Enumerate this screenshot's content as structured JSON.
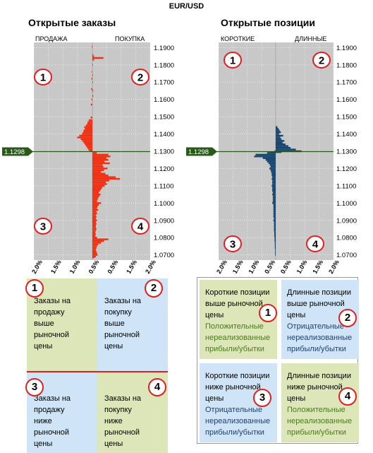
{
  "title": "EUR/USD",
  "current_price": "1.1298",
  "left_panel": {
    "title": "Открытые заказы",
    "left_label": "ПРОДАЖА",
    "right_label": "ПОКУПКА"
  },
  "right_panel": {
    "title": "Открытые позиции",
    "left_label": "КОРОТКИЕ",
    "right_label": "ДЛИННЫЕ"
  },
  "colors": {
    "plot_bg": "#c8c8c8",
    "orders_bar": "#f03010",
    "positions_bar": "#17466e",
    "price_line": "#2a5a1a",
    "marker": "#e02020",
    "quad_green": "#dde6b8",
    "quad_blue": "#cfe4f6"
  },
  "chart_data": [
    {
      "type": "bar",
      "orientation": "horizontal-diverging",
      "title": "Открытые заказы",
      "ylim": [
        1.067,
        1.193
      ],
      "y_ticks": [
        "1.1900",
        "1.1800",
        "1.1700",
        "1.1600",
        "1.1500",
        "1.1400",
        "1.1300",
        "1.1200",
        "1.1100",
        "1.1000",
        "1.0900",
        "1.0800",
        "1.0700"
      ],
      "x_ticks": [
        "2.0%",
        "1.5%",
        "1.0%",
        "0.5%",
        "0.5%",
        "1.5%",
        "2.0%"
      ],
      "xlim_percent": [
        -2.0,
        2.0
      ],
      "series": [
        {
          "name": "ПРОДАЖА",
          "values": [
            [
              1.1905,
              0.02
            ],
            [
              1.176,
              0.02
            ],
            [
              1.172,
              0.03
            ],
            [
              1.166,
              0.04
            ],
            [
              1.16,
              0.03
            ],
            [
              1.157,
              0.05
            ],
            [
              1.1495,
              0.06
            ],
            [
              1.148,
              0.12
            ],
            [
              1.147,
              0.16
            ],
            [
              1.146,
              0.18
            ],
            [
              1.145,
              0.22
            ],
            [
              1.144,
              0.28
            ],
            [
              1.143,
              0.26
            ],
            [
              1.142,
              0.3
            ],
            [
              1.141,
              0.32
            ],
            [
              1.14,
              0.36
            ],
            [
              1.139,
              0.45
            ],
            [
              1.138,
              0.52
            ],
            [
              1.137,
              0.4
            ],
            [
              1.136,
              0.35
            ],
            [
              1.135,
              0.3
            ],
            [
              1.134,
              0.26
            ],
            [
              1.133,
              0.22
            ],
            [
              1.132,
              0.18
            ],
            [
              1.131,
              0.14
            ],
            [
              1.1305,
              0.1
            ]
          ]
        },
        {
          "name": "ПОКУПКА",
          "values": [
            [
              1.186,
              0.02
            ],
            [
              1.185,
              0.06
            ],
            [
              1.184,
              0.38
            ],
            [
              1.183,
              0.06
            ],
            [
              1.18,
              0.02
            ],
            [
              1.174,
              0.02
            ],
            [
              1.17,
              0.02
            ],
            [
              1.165,
              0.03
            ],
            [
              1.162,
              0.03
            ],
            [
              1.129,
              0.15
            ],
            [
              1.128,
              0.55
            ],
            [
              1.127,
              0.62
            ],
            [
              1.126,
              0.48
            ],
            [
              1.125,
              0.55
            ],
            [
              1.124,
              0.42
            ],
            [
              1.123,
              0.6
            ],
            [
              1.122,
              0.35
            ],
            [
              1.121,
              0.38
            ],
            [
              1.12,
              0.52
            ],
            [
              1.119,
              0.4
            ],
            [
              1.118,
              0.3
            ],
            [
              1.117,
              0.45
            ],
            [
              1.116,
              0.55
            ],
            [
              1.115,
              0.8
            ],
            [
              1.114,
              0.95
            ],
            [
              1.113,
              0.58
            ],
            [
              1.112,
              0.46
            ],
            [
              1.111,
              0.5
            ],
            [
              1.11,
              0.42
            ],
            [
              1.109,
              0.34
            ],
            [
              1.108,
              0.3
            ],
            [
              1.107,
              0.26
            ],
            [
              1.106,
              0.22
            ],
            [
              1.105,
              0.28
            ],
            [
              1.104,
              0.24
            ],
            [
              1.103,
              0.2
            ],
            [
              1.102,
              0.18
            ],
            [
              1.101,
              0.16
            ],
            [
              1.1,
              0.3
            ],
            [
              1.099,
              0.22
            ],
            [
              1.098,
              0.18
            ],
            [
              1.097,
              0.16
            ],
            [
              1.096,
              0.2
            ],
            [
              1.095,
              0.14
            ],
            [
              1.094,
              0.16
            ],
            [
              1.093,
              0.12
            ],
            [
              1.092,
              0.14
            ],
            [
              1.091,
              0.12
            ],
            [
              1.09,
              0.16
            ],
            [
              1.089,
              0.12
            ],
            [
              1.088,
              0.14
            ],
            [
              1.087,
              0.12
            ],
            [
              1.086,
              0.12
            ],
            [
              1.085,
              0.14
            ],
            [
              1.084,
              0.12
            ],
            [
              1.083,
              0.1
            ],
            [
              1.082,
              0.12
            ],
            [
              1.081,
              0.1
            ],
            [
              1.08,
              0.16
            ],
            [
              1.079,
              0.55
            ],
            [
              1.078,
              0.4
            ],
            [
              1.077,
              0.3
            ],
            [
              1.076,
              0.2
            ],
            [
              1.075,
              0.16
            ],
            [
              1.074,
              0.14
            ],
            [
              1.073,
              0.12
            ],
            [
              1.072,
              0.14
            ],
            [
              1.071,
              0.16
            ],
            [
              1.07,
              0.18
            ],
            [
              1.069,
              0.12
            ],
            [
              1.0685,
              0.06
            ]
          ]
        }
      ]
    },
    {
      "type": "bar",
      "orientation": "horizontal-diverging",
      "title": "Открытые позиции",
      "ylim": [
        1.067,
        1.193
      ],
      "y_ticks": [
        "1.1900",
        "1.1800",
        "1.1700",
        "1.1600",
        "1.1500",
        "1.1400",
        "1.1300",
        "1.1200",
        "1.1100",
        "1.1000",
        "1.0900",
        "1.0800",
        "1.0700"
      ],
      "x_ticks": [
        "2.0%",
        "1.5%",
        "1.0%",
        "0.5%",
        "0.5%",
        "1.0%",
        "1.5%",
        "2.0%"
      ],
      "xlim_percent": [
        -2.0,
        2.0
      ],
      "series": [
        {
          "name": "КОРОТКИЕ",
          "values": [
            [
              1.13,
              0.04
            ],
            [
              1.1295,
              0.2
            ],
            [
              1.129,
              0.3
            ],
            [
              1.128,
              0.7
            ],
            [
              1.127,
              0.75
            ],
            [
              1.126,
              0.45
            ],
            [
              1.125,
              0.35
            ],
            [
              1.124,
              0.3
            ],
            [
              1.123,
              0.25
            ],
            [
              1.122,
              0.2
            ],
            [
              1.121,
              0.18
            ],
            [
              1.12,
              0.22
            ],
            [
              1.119,
              0.18
            ],
            [
              1.118,
              0.16
            ],
            [
              1.117,
              0.14
            ],
            [
              1.116,
              0.14
            ],
            [
              1.115,
              0.12
            ],
            [
              1.114,
              0.14
            ],
            [
              1.113,
              0.12
            ],
            [
              1.112,
              0.12
            ],
            [
              1.111,
              0.12
            ],
            [
              1.11,
              0.14
            ],
            [
              1.109,
              0.12
            ],
            [
              1.108,
              0.12
            ],
            [
              1.107,
              0.12
            ],
            [
              1.106,
              0.1
            ],
            [
              1.105,
              0.12
            ],
            [
              1.104,
              0.1
            ],
            [
              1.103,
              0.1
            ],
            [
              1.102,
              0.1
            ],
            [
              1.101,
              0.1
            ],
            [
              1.1,
              0.12
            ],
            [
              1.099,
              0.08
            ],
            [
              1.098,
              0.08
            ],
            [
              1.097,
              0.08
            ],
            [
              1.096,
              0.08
            ],
            [
              1.095,
              0.08
            ],
            [
              1.094,
              0.08
            ],
            [
              1.093,
              0.08
            ],
            [
              1.092,
              0.08
            ],
            [
              1.091,
              0.06
            ],
            [
              1.09,
              0.08
            ],
            [
              1.089,
              0.06
            ],
            [
              1.088,
              0.06
            ],
            [
              1.087,
              0.06
            ],
            [
              1.086,
              0.06
            ],
            [
              1.085,
              0.06
            ],
            [
              1.084,
              0.06
            ],
            [
              1.083,
              0.05
            ],
            [
              1.082,
              0.05
            ],
            [
              1.081,
              0.05
            ],
            [
              1.08,
              0.04
            ],
            [
              1.079,
              0.04
            ],
            [
              1.078,
              0.04
            ],
            [
              1.077,
              0.03
            ],
            [
              1.076,
              0.03
            ],
            [
              1.075,
              0.03
            ],
            [
              1.074,
              0.03
            ],
            [
              1.073,
              0.02
            ],
            [
              1.072,
              0.02
            ],
            [
              1.071,
              0.02
            ],
            [
              1.07,
              0.02
            ]
          ]
        },
        {
          "name": "ДЛИННЫЕ",
          "values": [
            [
              1.144,
              0.06
            ],
            [
              1.143,
              0.1
            ],
            [
              1.142,
              0.14
            ],
            [
              1.141,
              0.18
            ],
            [
              1.14,
              0.12
            ],
            [
              1.139,
              0.26
            ],
            [
              1.138,
              0.16
            ],
            [
              1.137,
              0.2
            ],
            [
              1.136,
              0.3
            ],
            [
              1.135,
              0.24
            ],
            [
              1.134,
              0.34
            ],
            [
              1.133,
              0.44
            ],
            [
              1.132,
              0.52
            ],
            [
              1.131,
              0.7
            ],
            [
              1.13,
              0.9
            ],
            [
              1.1295,
              0.2
            ]
          ]
        }
      ]
    }
  ],
  "quadrants_left": [
    {
      "num": "1",
      "text": [
        "Заказы на",
        "продажу",
        "выше",
        "рыночной",
        "цены"
      ]
    },
    {
      "num": "2",
      "text": [
        "Заказы на",
        "покупку",
        "выше",
        "рыночной",
        "цены"
      ]
    },
    {
      "num": "3",
      "text": [
        "Заказы на",
        "продажу",
        "ниже",
        "рыночной",
        "цены"
      ]
    },
    {
      "num": "4",
      "text": [
        "Заказы на",
        "покупку",
        "ниже",
        "рыночной",
        "цены"
      ]
    }
  ],
  "quadrants_right": [
    {
      "num": "1",
      "title": [
        "Короткие позиции",
        "выше рыночной",
        "цены"
      ],
      "pl": [
        "Положительные",
        "нереализованные",
        "прибыли/убытки"
      ],
      "pl_type": "pos"
    },
    {
      "num": "2",
      "title": [
        "Длинные позиции",
        "выше рыночной",
        "цены"
      ],
      "pl": [
        "Отрицательные",
        "нереализованные",
        "прибыли/убытки"
      ],
      "pl_type": "neg"
    },
    {
      "num": "3",
      "title": [
        "Короткие позиции",
        "ниже рыночной",
        "цены"
      ],
      "pl": [
        "Отрицательные",
        "нереализованные",
        "прибыли/убытки"
      ],
      "pl_type": "neg"
    },
    {
      "num": "4",
      "title": [
        "Длинные позиции",
        "ниже рыночной",
        "цены"
      ],
      "pl": [
        "Положительные",
        "нереализованные",
        "прибыли/убытки"
      ],
      "pl_type": "pos"
    }
  ],
  "markers": [
    "1",
    "2",
    "3",
    "4"
  ]
}
